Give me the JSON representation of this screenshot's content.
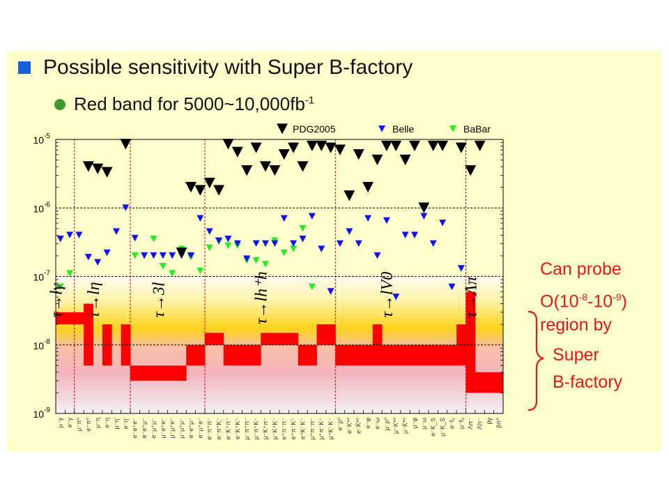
{
  "slide": {
    "title": "Possible sensitivity with Super B-factory",
    "subtitle_prefix": "Red band for 5000~10,000fb",
    "subtitle_exp": "-1",
    "annotation": {
      "line1": "Can probe",
      "line2_pre": "O(10",
      "line2_e1": "-8",
      "line2_mid": "-10",
      "line2_e2": "-9",
      "line2_post": ")",
      "line3": "region by",
      "line4": "Super",
      "line5": "B-factory"
    }
  },
  "colors": {
    "panel": "#ffffcc",
    "band": "#ff0000",
    "pdg": "#000000",
    "belle": "#1010ff",
    "babar": "#22ee22",
    "annotation": "#e8161b",
    "bullet_square": "#1a5fd6",
    "bullet_dot": "#3b9a2e"
  },
  "chart_data": {
    "type": "scatter",
    "y_scale": "log",
    "ylim": [
      1e-09,
      1e-05
    ],
    "y_ticks": [
      {
        "base": "10",
        "exp": "-5"
      },
      {
        "base": "10",
        "exp": "-6"
      },
      {
        "base": "10",
        "exp": "-7"
      },
      {
        "base": "10",
        "exp": "-8"
      },
      {
        "base": "10",
        "exp": "-9"
      }
    ],
    "legend": [
      {
        "name": "PDG2005",
        "color": "#000000"
      },
      {
        "name": "Belle",
        "color": "#1010ff"
      },
      {
        "name": "BaBar",
        "color": "#22ee22"
      }
    ],
    "n_channels": 48,
    "x_labels": [
      "μ⁻γ",
      "e⁻γ",
      "μ⁻π⁰",
      "e⁻π⁰",
      "μ⁻η",
      "e⁻η",
      "μ⁻η'",
      "e⁻η'",
      "e⁻e⁺e⁻",
      "e⁻e⁺μ⁻",
      "e⁻μ⁺μ⁻",
      "μ⁻e⁺e⁻",
      "μ⁻μ⁺e⁻",
      "μ⁻μ⁺μ⁻",
      "e⁻e⁺μ⁻",
      "e⁻μ⁺e⁻",
      "e⁻π⁺π⁻",
      "e⁻π⁺K⁻",
      "e⁻K⁺π⁻",
      "e⁻K⁺K⁻",
      "μ⁻π⁺π⁻",
      "μ⁻π⁺K⁻",
      "μ⁻K⁺π⁻",
      "μ⁻K⁺K⁻",
      "e⁺π⁻π⁻",
      "e⁺π⁻K⁻",
      "e⁺K⁻K⁻",
      "μ⁺π⁻π⁻",
      "μ⁺π⁻K⁻",
      "μ⁺K⁻K⁻",
      "e⁻ρ⁰",
      "e⁻K*⁰",
      "e⁻K̄*⁰",
      "e⁻φ",
      "e⁻ω",
      "μ⁻ρ⁰",
      "μ⁻K*⁰",
      "μ⁻K̄*⁰",
      "μ⁻φ",
      "μ⁻ω",
      "e⁻K_S",
      "μ⁻K_S",
      "e⁻f₀",
      "μ⁻f₀",
      "Λπ⁻",
      "Λ̄π⁻",
      "p̄γ",
      "p̄π⁰"
    ],
    "groups": [
      {
        "label": "τ→lγ",
        "range": [
          0,
          1
        ]
      },
      {
        "label": "τ→lη",
        "range": [
          2,
          7
        ]
      },
      {
        "label": "τ→3l",
        "range": [
          8,
          15
        ]
      },
      {
        "label": "τ→lh⁺h⁻",
        "range": [
          16,
          29
        ]
      },
      {
        "label": "τ→lV0",
        "range": [
          30,
          42
        ]
      },
      {
        "label": "τ→Λπ",
        "range": [
          43,
          47
        ]
      }
    ],
    "group_labels_text": [
      "τ→lγ",
      "τ→lη",
      "τ→3l",
      "τ→lh⁺h",
      "τ→lV0",
      "τ→Λπ"
    ],
    "group_label_y": [
      2.5e-08,
      2.5e-08,
      2.5e-08,
      2e-08,
      2.5e-08,
      2.5e-08
    ],
    "group_separators_after": [
      1,
      7,
      15,
      29,
      43
    ],
    "super_b_band_lower": [
      2e-08,
      2e-08,
      2e-08,
      5e-09,
      1e-08,
      5e-09,
      1e-08,
      5e-09,
      3e-09,
      3e-09,
      3e-09,
      3e-09,
      3e-09,
      3e-09,
      5e-09,
      5e-09,
      1e-08,
      1e-08,
      5e-09,
      5e-09,
      5e-09,
      5e-09,
      1e-08,
      1e-08,
      1e-08,
      1e-08,
      5e-09,
      5e-09,
      1e-08,
      1e-08,
      5e-09,
      5e-09,
      5e-09,
      5e-09,
      5e-09,
      5e-09,
      5e-09,
      5e-09,
      5e-09,
      5e-09,
      5e-09,
      5e-09,
      5e-09,
      5e-09,
      2e-09,
      2e-09,
      2e-09,
      2e-09
    ],
    "super_b_band_upper": [
      3e-08,
      3e-08,
      3e-08,
      4e-08,
      1e-08,
      2e-08,
      1e-08,
      2e-08,
      5e-09,
      5e-09,
      5e-09,
      5e-09,
      5e-09,
      5e-09,
      1e-08,
      1e-08,
      1.5e-08,
      1.5e-08,
      1e-08,
      1e-08,
      1e-08,
      1e-08,
      1.5e-08,
      1.5e-08,
      1.5e-08,
      1.5e-08,
      1e-08,
      1e-08,
      2e-08,
      2e-08,
      1e-08,
      1e-08,
      1e-08,
      1e-08,
      2e-08,
      1e-08,
      1e-08,
      1e-08,
      1e-08,
      1e-08,
      1e-08,
      1e-08,
      1e-08,
      2e-08,
      6e-08,
      4e-09,
      4e-09,
      4e-09
    ],
    "pdg2005": [
      null,
      null,
      null,
      4e-06,
      3.7e-06,
      3.3e-06,
      null,
      8.5e-06,
      null,
      null,
      null,
      null,
      null,
      2.2e-07,
      2e-06,
      1.8e-06,
      2.3e-06,
      1.8e-06,
      8.5e-06,
      6.5e-06,
      3.5e-06,
      7.5e-06,
      4e-06,
      3.5e-06,
      6e-06,
      7.5e-06,
      4e-06,
      8e-06,
      8e-06,
      7.5e-06,
      7e-06,
      1.5e-06,
      6e-06,
      2e-06,
      5e-06,
      8e-06,
      8e-06,
      5e-06,
      8e-06,
      1e-06,
      8e-06,
      8e-06,
      null,
      7.5e-06,
      3.5e-06,
      8e-06,
      null,
      null
    ],
    "belle": [
      3.5e-07,
      4e-07,
      4e-07,
      1.9e-07,
      1.6e-07,
      2.2e-07,
      4.5e-07,
      1e-06,
      3.6e-07,
      2e-07,
      2e-07,
      2e-07,
      2e-07,
      2e-07,
      2e-07,
      7e-07,
      4.5e-07,
      3.3e-07,
      3.5e-07,
      3e-07,
      1.8e-07,
      3e-07,
      3e-07,
      3e-07,
      7e-07,
      3e-07,
      3.5e-07,
      7.5e-07,
      2.5e-07,
      6e-08,
      3e-07,
      4.5e-07,
      3e-07,
      7e-07,
      2e-07,
      6.5e-07,
      5e-08,
      4e-07,
      4e-07,
      7.5e-07,
      3e-07,
      6e-07,
      7e-08,
      1.3e-07,
      null,
      null,
      null,
      null
    ],
    "babar": [
      7e-08,
      1.1e-07,
      null,
      null,
      null,
      null,
      null,
      null,
      2e-07,
      2e-07,
      3.5e-07,
      1.4e-07,
      1.1e-07,
      2.5e-07,
      1.9e-07,
      1.2e-07,
      2.6e-07,
      3.2e-07,
      2.8e-07,
      2.8e-07,
      1.7e-07,
      1.7e-07,
      1.5e-07,
      3.3e-07,
      2.2e-07,
      2.5e-07,
      5e-07,
      7e-08,
      null,
      null,
      null,
      null,
      null,
      null,
      null,
      null,
      null,
      null,
      null,
      null,
      null,
      null,
      null,
      null,
      null,
      null,
      null,
      null
    ]
  }
}
